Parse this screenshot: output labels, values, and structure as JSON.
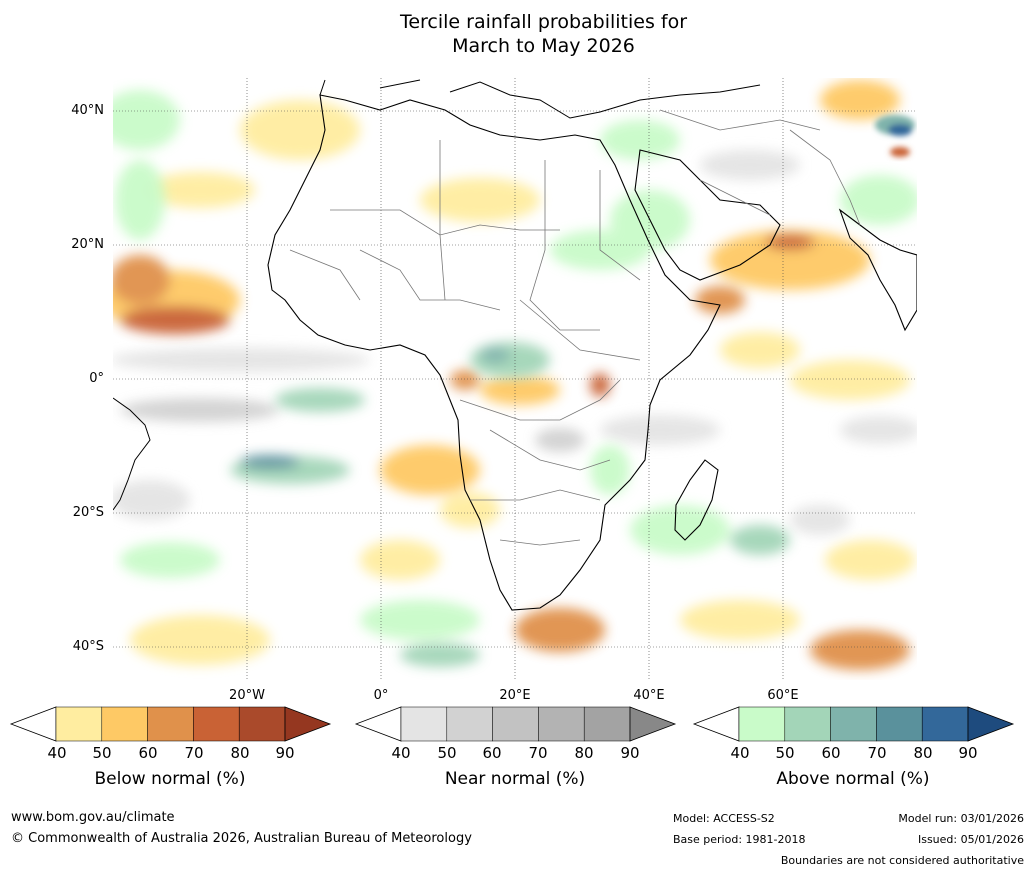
{
  "title": {
    "line1": "Tercile rainfall probabilities for",
    "line2": "March to May 2026"
  },
  "axes": {
    "lat_labels": [
      "40°N",
      "20°N",
      "0°",
      "20°S",
      "40°S"
    ],
    "lon_labels": [
      "20°W",
      "0°",
      "20°E",
      "40°E",
      "60°E"
    ]
  },
  "colorbars": [
    {
      "name": "below",
      "title": "Below normal (%)",
      "ticks": [
        "40",
        "50",
        "60",
        "70",
        "80",
        "90"
      ],
      "colors": [
        "#ffffff",
        "#ffeda0",
        "#fec965",
        "#e0914b",
        "#c96235",
        "#aa4a2b",
        "#953720"
      ]
    },
    {
      "name": "near",
      "title": "Near normal (%)",
      "ticks": [
        "40",
        "50",
        "60",
        "70",
        "80",
        "90"
      ],
      "colors": [
        "#ffffff",
        "#e4e4e4",
        "#d2d2d2",
        "#c2c2c2",
        "#b3b3b3",
        "#a3a3a3",
        "#888888"
      ]
    },
    {
      "name": "above",
      "title": "Above normal (%)",
      "ticks": [
        "40",
        "50",
        "60",
        "70",
        "80",
        "90"
      ],
      "colors": [
        "#ffffff",
        "#c9fbc9",
        "#a3d5b8",
        "#7fb3ab",
        "#5a919c",
        "#33689a",
        "#1e4b7e"
      ]
    }
  ],
  "footer": {
    "url": "www.bom.gov.au/climate",
    "copyright": "© Commonwealth of Australia 2026, Australian Bureau of Meteorology",
    "model": "Model: ACCESS-S2",
    "base_period": "Base period: 1981-2018",
    "model_run": "Model run: 03/01/2026",
    "issued": "Issued: 05/01/2026",
    "disclaimer": "Boundaries are not considered authoritative"
  }
}
